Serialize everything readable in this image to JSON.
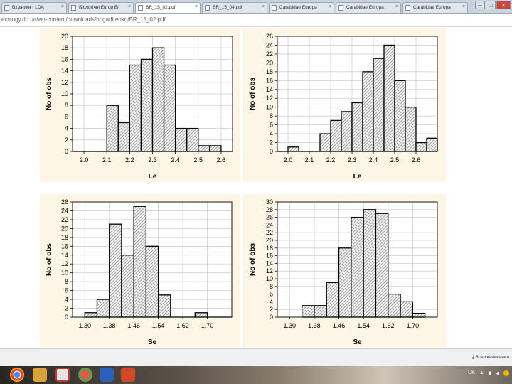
{
  "browser": {
    "tabs": [
      {
        "label": "Вхiдники - LDA",
        "active": false
      },
      {
        "label": "Бiологiчнi Europ Бi",
        "active": false
      },
      {
        "label": "BR_15_02.pdf",
        "active": true
      },
      {
        "label": "BR_15_04.pdf",
        "active": false
      },
      {
        "label": "Carabidae Europa",
        "active": false
      },
      {
        "label": "Carabidae Europa",
        "active": false
      },
      {
        "label": "Carabidae Europa",
        "active": false
      }
    ],
    "url": "ecology.dp.ua/wp-content/downloads/brigadirenko/BR_15_02.pdf",
    "download_all": "Все скачивания",
    "tray_lang": "UK"
  },
  "chart_data": [
    {
      "type": "bar",
      "xlabel": "Le",
      "ylabel": "No of obs",
      "categories": [
        "1.95-2.00",
        "2.00-2.05",
        "2.05-2.10",
        "2.10-2.15",
        "2.15-2.20",
        "2.20-2.25",
        "2.25-2.30",
        "2.30-2.35",
        "2.35-2.40",
        "2.40-2.45",
        "2.45-2.50",
        "2.50-2.55",
        "2.55-2.60",
        "2.60-2.65"
      ],
      "values": [
        0,
        0,
        0,
        8,
        5,
        15,
        16,
        18,
        15,
        4,
        4,
        1,
        1,
        0
      ],
      "xlim": [
        1.95,
        2.65
      ],
      "xticks": [
        "2.0",
        "2.1",
        "2.2",
        "2.3",
        "2.4",
        "2.5",
        "2.6"
      ],
      "xtick_values": [
        2.0,
        2.1,
        2.2,
        2.3,
        2.4,
        2.5,
        2.6
      ],
      "ylim": [
        0,
        20
      ],
      "yticks": [
        "0",
        "2",
        "4",
        "6",
        "8",
        "10",
        "12",
        "14",
        "16",
        "18",
        "20"
      ],
      "ytick_values": [
        0,
        2,
        4,
        6,
        8,
        10,
        12,
        14,
        16,
        18,
        20
      ],
      "grid": true
    },
    {
      "type": "bar",
      "xlabel": "Le",
      "ylabel": "No of obs",
      "categories": [
        "1.95-2.00",
        "2.00-2.05",
        "2.05-2.10",
        "2.10-2.15",
        "2.15-2.20",
        "2.20-2.25",
        "2.25-2.30",
        "2.30-2.35",
        "2.35-2.40",
        "2.40-2.45",
        "2.45-2.50",
        "2.50-2.55",
        "2.55-2.60",
        "2.60-2.65",
        "2.65-2.70"
      ],
      "values": [
        0,
        1,
        0,
        0,
        4,
        7,
        9,
        11,
        18,
        21,
        24,
        16,
        10,
        2,
        3
      ],
      "xlim": [
        1.95,
        2.7
      ],
      "xticks": [
        "2.0",
        "2.1",
        "2.2",
        "2.3",
        "2.4",
        "2.5",
        "2.6"
      ],
      "xtick_values": [
        2.0,
        2.1,
        2.2,
        2.3,
        2.4,
        2.5,
        2.6
      ],
      "ylim": [
        0,
        26
      ],
      "yticks": [
        "0",
        "2",
        "4",
        "6",
        "8",
        "10",
        "12",
        "14",
        "16",
        "18",
        "20",
        "22",
        "24",
        "26"
      ],
      "ytick_values": [
        0,
        2,
        4,
        6,
        8,
        10,
        12,
        14,
        16,
        18,
        20,
        22,
        24,
        26
      ],
      "grid": true
    },
    {
      "type": "bar",
      "xlabel": "Se",
      "ylabel": "No of obs",
      "categories": [
        "1.30-1.34",
        "1.34-1.38",
        "1.38-1.42",
        "1.42-1.46",
        "1.46-1.50",
        "1.50-1.54",
        "1.54-1.58",
        "1.58-1.62",
        "1.62-1.66",
        "1.66-1.70",
        "1.70-1.74",
        "1.74-1.78"
      ],
      "values": [
        1,
        4,
        21,
        14,
        25,
        16,
        5,
        0,
        0,
        1,
        0,
        0
      ],
      "xlim": [
        1.26,
        1.78
      ],
      "xticks": [
        "1.30",
        "1.38",
        "1.46",
        "1.54",
        "1.62",
        "1.70"
      ],
      "xtick_values": [
        1.3,
        1.38,
        1.46,
        1.54,
        1.62,
        1.7
      ],
      "ylim": [
        0,
        26
      ],
      "yticks": [
        "0",
        "2",
        "4",
        "6",
        "8",
        "10",
        "12",
        "14",
        "16",
        "18",
        "20",
        "22",
        "24",
        "26"
      ],
      "ytick_values": [
        0,
        2,
        4,
        6,
        8,
        10,
        12,
        14,
        16,
        18,
        20,
        22,
        24,
        26
      ],
      "grid": true
    },
    {
      "type": "bar",
      "xlabel": "Se",
      "ylabel": "No of obs",
      "categories": [
        "1.34-1.38",
        "1.38-1.42",
        "1.42-1.46",
        "1.46-1.50",
        "1.50-1.54",
        "1.54-1.58",
        "1.58-1.62",
        "1.62-1.66",
        "1.66-1.70",
        "1.70-1.74"
      ],
      "values": [
        3,
        3,
        9,
        18,
        26,
        28,
        27,
        6,
        4,
        1
      ],
      "xlim": [
        1.26,
        1.78
      ],
      "xticks": [
        "1.30",
        "1.38",
        "1.46",
        "1.54",
        "1.62",
        "1.70"
      ],
      "xtick_values": [
        1.3,
        1.38,
        1.46,
        1.54,
        1.62,
        1.7
      ],
      "ylim": [
        0,
        30
      ],
      "yticks": [
        "0",
        "2",
        "4",
        "6",
        "8",
        "10",
        "12",
        "14",
        "16",
        "18",
        "20",
        "22",
        "24",
        "26",
        "28",
        "30"
      ],
      "ytick_values": [
        0,
        2,
        4,
        6,
        8,
        10,
        12,
        14,
        16,
        18,
        20,
        22,
        24,
        26,
        28,
        30
      ],
      "grid": true
    }
  ]
}
